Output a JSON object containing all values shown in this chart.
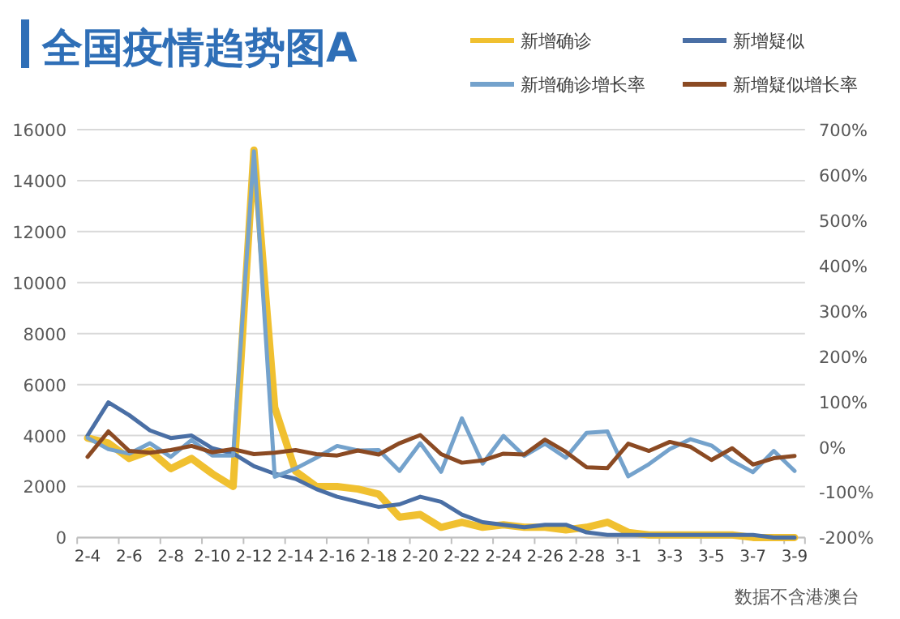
{
  "chart_data": {
    "type": "line",
    "title": "全国疫情趋势图A",
    "annotations": [
      "数据不含港澳台"
    ],
    "categories": [
      "2-4",
      null,
      "2-6",
      null,
      "2-8",
      null,
      "2-10",
      null,
      "2-12",
      null,
      "2-14",
      null,
      "2-16",
      null,
      "2-18",
      null,
      "2-20",
      null,
      "2-22",
      null,
      "2-24",
      null,
      "2-26",
      null,
      "2-28",
      null,
      "3-1",
      null,
      "3-3",
      null,
      "3-5",
      null,
      "3-7",
      null,
      "3-9"
    ],
    "series": [
      {
        "name": "新增确诊",
        "color": "#f0c030",
        "values": [
          3900,
          3700,
          3100,
          3400,
          2700,
          3100,
          2500,
          2000,
          15200,
          5100,
          2600,
          2000,
          2000,
          1900,
          1700,
          800,
          900,
          400,
          600,
          400,
          500,
          400,
          400,
          300,
          400,
          600,
          200,
          100,
          100,
          100,
          100,
          100,
          0,
          0,
          0
        ]
      },
      {
        "name": "新增疑似",
        "color": "#4a6fa5",
        "values": [
          4000,
          5300,
          4800,
          4200,
          3900,
          4000,
          3500,
          3300,
          2800,
          2500,
          2300,
          1900,
          1600,
          1400,
          1200,
          1300,
          1600,
          1400,
          900,
          600,
          500,
          400,
          500,
          500,
          200,
          100,
          100,
          100,
          100,
          100,
          100,
          100,
          100,
          0,
          0
        ]
      },
      {
        "name": "新增确诊增长率",
        "color": "#74a2cc",
        "axis": "y2",
        "values": [
          20,
          -5,
          -15,
          8,
          -22,
          15,
          -19,
          -19,
          652,
          -66,
          -48,
          -24,
          2,
          -8,
          -7,
          -53,
          8,
          -55,
          63,
          -37,
          24,
          -20,
          7,
          -24,
          31,
          34,
          -65,
          -38,
          -5,
          17,
          3,
          -31,
          -56,
          -9,
          -53
        ]
      },
      {
        "name": "新增疑似增长率",
        "color": "#8b4a23",
        "axis": "y2",
        "values": [
          -22,
          34,
          -9,
          -13,
          -7,
          2,
          -12,
          -5,
          -16,
          -13,
          -7,
          -16,
          -19,
          -8,
          -17,
          8,
          26,
          -16,
          -35,
          -30,
          -15,
          -17,
          16,
          -11,
          -45,
          -47,
          7,
          -9,
          11,
          0,
          -29,
          -3,
          -39,
          -25,
          -20
        ]
      }
    ],
    "ylim": [
      0,
      16000
    ],
    "yticks": [
      0,
      2000,
      4000,
      6000,
      8000,
      10000,
      12000,
      14000,
      16000
    ],
    "y2lim": [
      -200,
      700
    ],
    "y2ticks": [
      {
        "value": -200,
        "label": "-200%"
      },
      {
        "value": -100,
        "label": "-100%"
      },
      {
        "value": 0,
        "label": "0%"
      },
      {
        "value": 100,
        "label": "100%"
      },
      {
        "value": 200,
        "label": "200%"
      },
      {
        "value": 300,
        "label": "300%"
      },
      {
        "value": 400,
        "label": "400%"
      },
      {
        "value": 500,
        "label": "500%"
      },
      {
        "value": 600,
        "label": "600%"
      },
      {
        "value": 700,
        "label": "700%"
      }
    ],
    "grid": "y",
    "legend": "top right"
  }
}
